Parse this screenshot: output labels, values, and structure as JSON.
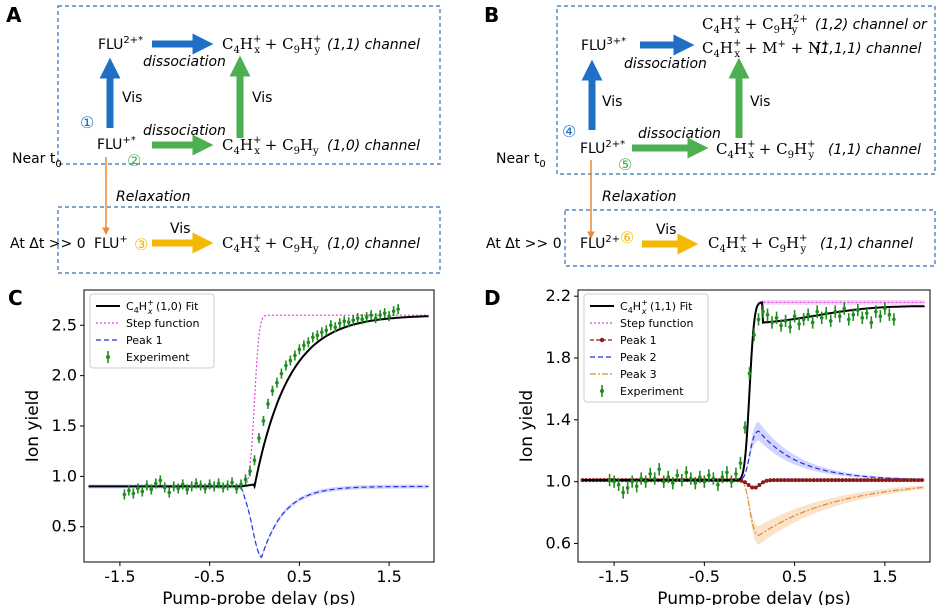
{
  "panelA": {
    "letter": "A",
    "flu2": "FLU",
    "flu2_sup": "2+*",
    "c4": "C",
    "c4_sub": "4",
    "h": "H",
    "hx_sub": "x",
    "plus_sup": "+",
    "c9": "C",
    "c9_sub": "9",
    "hy_sub": "y",
    "plus": " + ",
    "dissociation": "dissociation",
    "channel_11": "(1,1) channel",
    "vis": "Vis",
    "circ1": "①",
    "circ2": "②",
    "circ3": "③",
    "flu1": "FLU",
    "flu1_sup": "+*",
    "channel_10": "(1,0) channel",
    "near_t0": "Near t",
    "t0_sub": "0",
    "relaxation": "Relaxation",
    "at_dt": "At Δt >> 0",
    "flu_plus": "FLU",
    "flu_plus_sup": "+"
  },
  "panelB": {
    "letter": "B",
    "flu3": "FLU",
    "flu3_sup": "3+*",
    "hy2_sup": "2+",
    "channel_12": "(1,2) channel or",
    "m_plus": "M",
    "n_plus": "N",
    "plus_sup": "+",
    "channel_111": "(1,1,1) channel",
    "circ4": "④",
    "circ5": "⑤",
    "circ6": "⑥",
    "flu2": "FLU",
    "flu2_sup": "2+*",
    "channel_11": "(1,1) channel",
    "flu2_plain": "FLU",
    "flu2_plain_sup": "2+",
    "vis": "Vis",
    "dissociation": "dissociation",
    "near_t0": "Near t",
    "t0_sub": "0",
    "relaxation": "Relaxation",
    "at_dt": "At Δt >> 0"
  },
  "colors": {
    "blue": "#1f6fc5",
    "green": "#4caf50",
    "orange": "#ee8833",
    "yellow": "#f5b800",
    "dash": "#2f6db5"
  },
  "chart_data": [
    {
      "panel": "C",
      "type": "line",
      "xlabel": "Pump-probe delay (ps)",
      "ylabel": "Ion yield",
      "xlim": [
        -1.9,
        2.0
      ],
      "ylim": [
        0.15,
        2.85
      ],
      "xticks": [
        -1.5,
        -0.5,
        0.5,
        1.5
      ],
      "xtick_labels": [
        "-1.5",
        "-0.5",
        "0.5",
        "1.5"
      ],
      "yticks": [
        0.5,
        1.0,
        1.5,
        2.0,
        2.5
      ],
      "ytick_labels": [
        "0.5",
        "1.0",
        "1.5",
        "2.0",
        "2.5"
      ],
      "legend": {
        "position": "top-left",
        "fit_label_pre": "C",
        "fit_label_sub": "4",
        "fit_label_h": "H",
        "fit_label_sup": "+",
        "fit_label_x": "x",
        "fit_label_post": " (1,0) Fit",
        "step": "Step function",
        "peak1": "Peak 1",
        "experiment": "Experiment"
      },
      "model": {
        "baseline": 0.9,
        "plateau": 2.6,
        "t0": 0.0,
        "rise_tau": 0.38,
        "peak_amp": -0.7,
        "peak_center": 0.08,
        "peak_width": 0.1,
        "peak_decay": 0.25
      },
      "experiment": {
        "x": [
          -1.45,
          -1.4,
          -1.35,
          -1.3,
          -1.25,
          -1.2,
          -1.15,
          -1.1,
          -1.05,
          -1.0,
          -0.95,
          -0.9,
          -0.85,
          -0.8,
          -0.75,
          -0.7,
          -0.65,
          -0.6,
          -0.55,
          -0.5,
          -0.45,
          -0.4,
          -0.35,
          -0.3,
          -0.25,
          -0.2,
          -0.15,
          -0.1,
          -0.05,
          0.0,
          0.05,
          0.1,
          0.15,
          0.2,
          0.25,
          0.3,
          0.35,
          0.4,
          0.45,
          0.5,
          0.55,
          0.6,
          0.65,
          0.7,
          0.75,
          0.8,
          0.85,
          0.9,
          0.95,
          1.0,
          1.05,
          1.1,
          1.15,
          1.2,
          1.25,
          1.3,
          1.35,
          1.4,
          1.45,
          1.5,
          1.55,
          1.6
        ],
        "y": [
          0.82,
          0.86,
          0.83,
          0.88,
          0.85,
          0.91,
          0.87,
          0.93,
          0.96,
          0.89,
          0.84,
          0.9,
          0.88,
          0.92,
          0.87,
          0.9,
          0.93,
          0.91,
          0.88,
          0.92,
          0.9,
          0.93,
          0.89,
          0.91,
          0.94,
          0.88,
          0.92,
          0.97,
          1.05,
          1.16,
          1.38,
          1.55,
          1.72,
          1.85,
          1.93,
          2.02,
          2.1,
          2.15,
          2.2,
          2.26,
          2.3,
          2.33,
          2.38,
          2.4,
          2.43,
          2.45,
          2.5,
          2.48,
          2.52,
          2.54,
          2.53,
          2.55,
          2.57,
          2.56,
          2.58,
          2.6,
          2.57,
          2.6,
          2.62,
          2.59,
          2.64,
          2.66
        ],
        "err": 0.05
      }
    },
    {
      "panel": "D",
      "type": "line",
      "xlabel": "Pump-probe delay (ps)",
      "ylabel": "Ion yield",
      "xlim": [
        -1.9,
        2.0
      ],
      "ylim": [
        0.48,
        2.24
      ],
      "xticks": [
        -1.5,
        -0.5,
        0.5,
        1.5
      ],
      "xtick_labels": [
        "-1.5",
        "-0.5",
        "0.5",
        "1.5"
      ],
      "yticks": [
        0.6,
        1.0,
        1.4,
        1.8,
        2.2
      ],
      "ytick_labels": [
        "0.6",
        "1.0",
        "1.4",
        "1.8",
        "2.2"
      ],
      "legend": {
        "position": "top-left",
        "fit_label_pre": "C",
        "fit_label_sub": "4",
        "fit_label_h": "H",
        "fit_label_sup": "+",
        "fit_label_x": "x",
        "fit_label_post": " (1,1) Fit",
        "step": "Step function",
        "peak1": "Peak 1",
        "peak2": "Peak 2",
        "peak3": "Peak 3",
        "experiment": "Experiment"
      },
      "model": {
        "baseline": 1.01,
        "plateau": 2.16,
        "t0": 0.0,
        "rise_tau": 0.05,
        "peak1_amp": -0.05,
        "peak2_amp": 0.32,
        "peak2_decay": 0.45,
        "peak3_amp": -0.36,
        "peak3_decay": 0.9
      },
      "experiment": {
        "x": [
          -1.55,
          -1.5,
          -1.45,
          -1.4,
          -1.35,
          -1.3,
          -1.25,
          -1.2,
          -1.15,
          -1.1,
          -1.05,
          -1.0,
          -0.95,
          -0.9,
          -0.85,
          -0.8,
          -0.75,
          -0.7,
          -0.65,
          -0.6,
          -0.55,
          -0.5,
          -0.45,
          -0.4,
          -0.35,
          -0.3,
          -0.25,
          -0.2,
          -0.15,
          -0.1,
          -0.05,
          0.0,
          0.05,
          0.1,
          0.15,
          0.2,
          0.25,
          0.3,
          0.35,
          0.4,
          0.45,
          0.5,
          0.55,
          0.6,
          0.65,
          0.7,
          0.75,
          0.8,
          0.85,
          0.9,
          0.95,
          1.0,
          1.05,
          1.1,
          1.15,
          1.2,
          1.25,
          1.3,
          1.35,
          1.4,
          1.45,
          1.5,
          1.55,
          1.6
        ],
        "y": [
          1.01,
          1.0,
          0.98,
          0.93,
          0.96,
          1.0,
          0.97,
          1.02,
          1.0,
          1.05,
          1.02,
          1.08,
          1.0,
          1.03,
          0.99,
          1.04,
          1.01,
          1.06,
          1.02,
          0.99,
          1.03,
          1.0,
          1.04,
          1.02,
          0.98,
          1.03,
          1.06,
          1.0,
          1.05,
          1.12,
          1.35,
          1.7,
          1.95,
          2.05,
          2.1,
          2.08,
          2.03,
          2.06,
          2.01,
          2.04,
          2.0,
          2.07,
          2.02,
          2.05,
          2.08,
          2.03,
          2.1,
          2.06,
          2.09,
          2.04,
          2.1,
          2.07,
          2.12,
          2.05,
          2.08,
          2.11,
          2.06,
          2.09,
          2.03,
          2.1,
          2.07,
          2.12,
          2.08,
          2.05
        ],
        "err": 0.04
      }
    }
  ]
}
